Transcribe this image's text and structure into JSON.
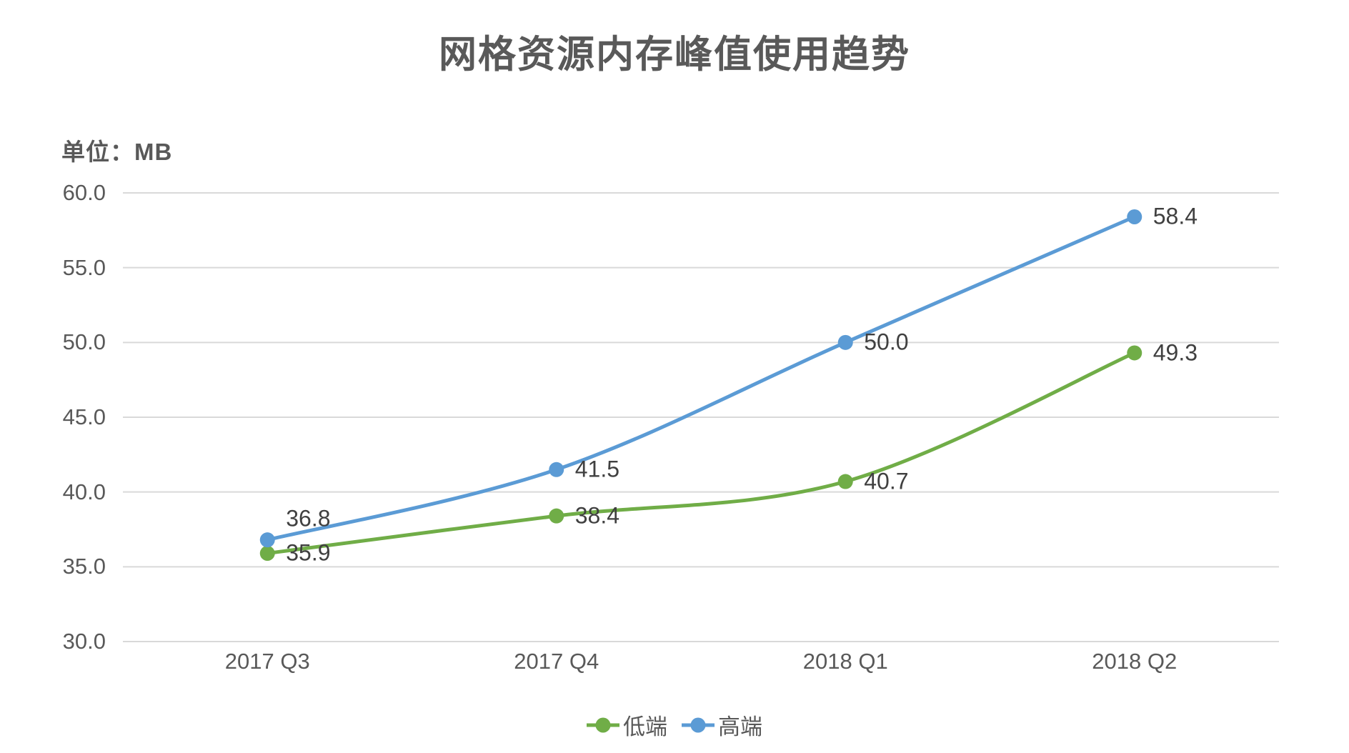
{
  "title": "网格资源内存峰值使用趋势",
  "unit_label": "单位：MB",
  "chart_data": {
    "type": "line",
    "title": "网格资源内存峰值使用趋势",
    "unit": "MB",
    "categories": [
      "2017 Q3",
      "2017 Q4",
      "2018 Q1",
      "2018 Q2"
    ],
    "series": [
      {
        "name": "低端",
        "color": "#70AD47",
        "values": [
          35.9,
          38.4,
          40.7,
          49.3
        ],
        "labels": [
          "35.9",
          "38.4",
          "40.7",
          "49.3"
        ],
        "label_dy": [
          0,
          0,
          0,
          0
        ]
      },
      {
        "name": "高端",
        "color": "#5B9BD5",
        "values": [
          36.8,
          41.5,
          50.0,
          58.4
        ],
        "labels": [
          "36.8",
          "41.5",
          "50.0",
          "58.4"
        ],
        "label_dy": [
          -30,
          0,
          0,
          0
        ]
      }
    ],
    "ylim": [
      30,
      60
    ],
    "ytick_step": 5,
    "ytick_labels": [
      "30.0",
      "35.0",
      "40.0",
      "45.0",
      "50.0",
      "55.0",
      "60.0"
    ],
    "xlabel": "",
    "ylabel": "",
    "grid": "horizontal",
    "smoothed_lines": true,
    "data_labels": true,
    "legend_position": "bottom"
  },
  "colors": {
    "background": "#FFFFFF",
    "title_text": "#595959",
    "tick_text": "#595959",
    "data_label_text": "#404040",
    "gridline": "#D9D9D9",
    "series_low": "#70AD47",
    "series_high": "#5B9BD5"
  }
}
